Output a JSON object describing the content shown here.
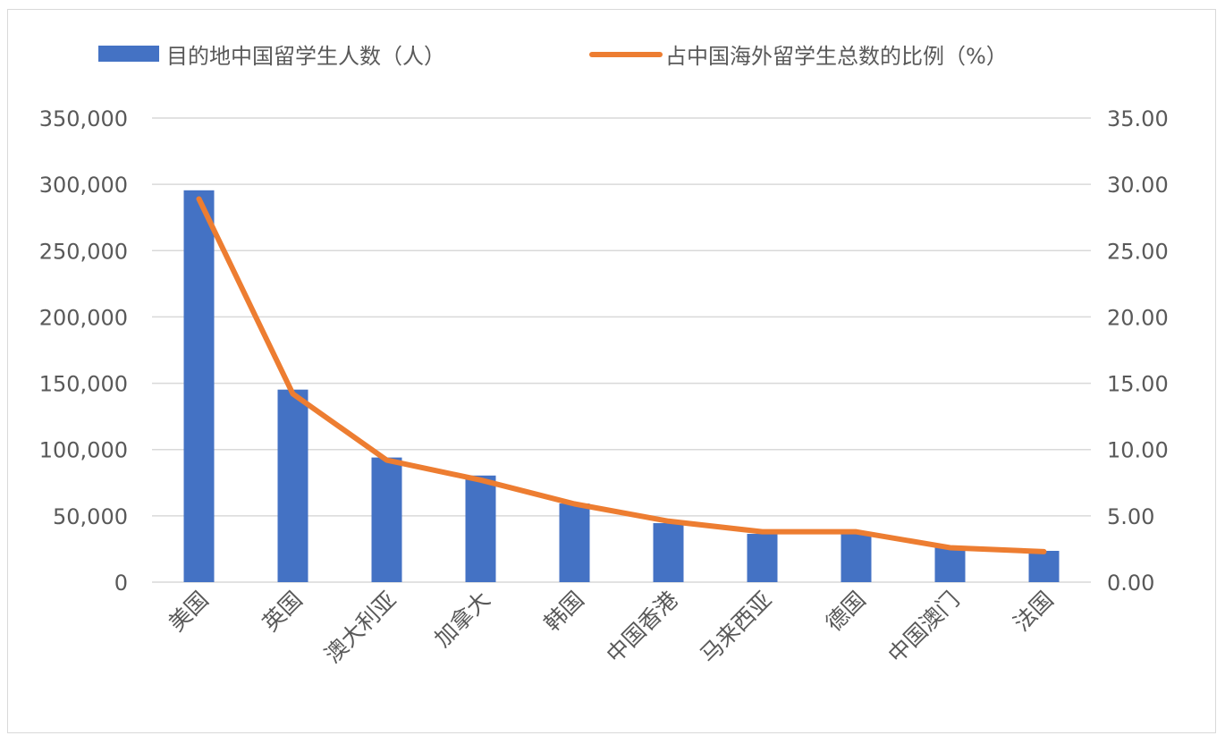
{
  "chart_data": {
    "type": "bar+line",
    "title": "",
    "categories": [
      "美国",
      "英国",
      "澳大利亚",
      "加拿大",
      "韩国",
      "中国香港",
      "马来西亚",
      "德国",
      "中国澳门",
      "法国"
    ],
    "series": [
      {
        "name": "目的地中国留学生人数（人）",
        "type": "bar",
        "axis": "left",
        "color": "#4472C4",
        "values": [
          295500,
          145200,
          94000,
          80400,
          59300,
          44500,
          36400,
          36400,
          26300,
          23600
        ]
      },
      {
        "name": "占中国海外留学生总数的比例（%）",
        "type": "line",
        "axis": "right",
        "color": "#ED7D31",
        "values": [
          28.9,
          14.2,
          9.2,
          7.7,
          5.9,
          4.6,
          3.8,
          3.8,
          2.6,
          2.3
        ]
      }
    ],
    "y_left": {
      "range": [
        0,
        350000
      ],
      "ticks": [
        "0",
        "50,000",
        "100,000",
        "150,000",
        "200,000",
        "250,000",
        "300,000",
        "350,000"
      ]
    },
    "y_right": {
      "range": [
        0,
        35
      ],
      "ticks": [
        "0.00",
        "5.00",
        "10.00",
        "15.00",
        "20.00",
        "25.00",
        "30.00",
        "35.00"
      ]
    },
    "grid": true,
    "legend": "top"
  }
}
